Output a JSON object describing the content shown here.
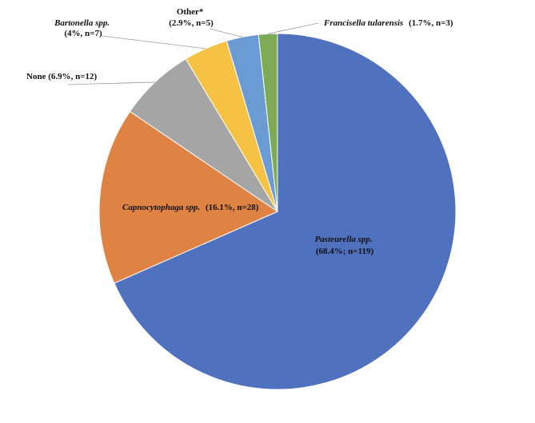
{
  "chart_data": {
    "type": "pie",
    "title": "",
    "slices": [
      {
        "label": "Pasteurella spp.",
        "percent": 68.4,
        "n": 119,
        "color": "#4F71BE",
        "italic_part": "Pasteurella spp.",
        "detail": "(68.4%; n=119)"
      },
      {
        "label": "Capnocytophaga spp.",
        "percent": 16.1,
        "n": 28,
        "color": "#DF8344",
        "italic_part": "Capnocytophaga spp.",
        "detail": "(16.1%, n=28)"
      },
      {
        "label": "None",
        "percent": 6.9,
        "n": 12,
        "color": "#A5A5A5",
        "italic_part": "",
        "detail": "None (6.9%, n=12)"
      },
      {
        "label": "Bartonella spp.",
        "percent": 4,
        "n": 7,
        "color": "#F6C243",
        "italic_part": "Bartonella spp.",
        "detail": "(4%, n=7)"
      },
      {
        "label": "Other*",
        "percent": 2.9,
        "n": 5,
        "color": "#6A9BD3",
        "italic_part": "",
        "detail": "Other*",
        "detail2": "(2.9%, n=5)"
      },
      {
        "label": "Francisella tularensis",
        "percent": 1.7,
        "n": 3,
        "color": "#7DAB55",
        "italic_part": "Francisella tularensis",
        "detail": "(1.7%, n=3)"
      }
    ]
  }
}
